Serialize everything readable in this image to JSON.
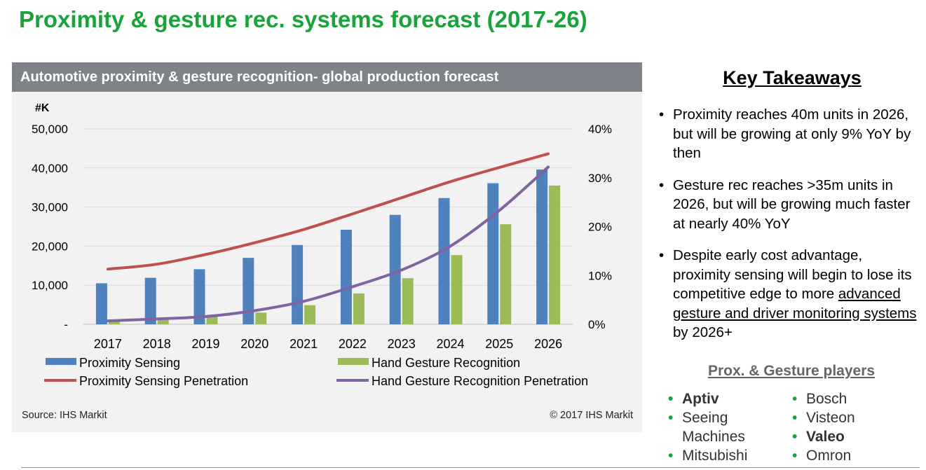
{
  "title": "Proximity & gesture rec. systems forecast (2017-26)",
  "colors": {
    "title_green": "#1aa33a",
    "proximity_bar": "#4f81bd",
    "gesture_bar": "#9bbb59",
    "proximity_line": "#c0504d",
    "gesture_line": "#8064a2",
    "header_bg": "#7f8389",
    "panel_bg": "#f2f2f2"
  },
  "chart": {
    "header": "Automotive proximity & gesture recognition- global production forecast",
    "source": "Source: IHS Markit",
    "copyright": "© 2017 IHS Markit"
  },
  "chart_data": {
    "type": "bar",
    "title": "Automotive proximity & gesture recognition- global production forecast",
    "categories": [
      "2017",
      "2018",
      "2019",
      "2020",
      "2021",
      "2022",
      "2023",
      "2024",
      "2025",
      "2026"
    ],
    "ylabel": "#K",
    "ylim": [
      0,
      50000
    ],
    "yticks": [
      "-",
      "10,000",
      "20,000",
      "30,000",
      "40,000",
      "50,000"
    ],
    "y2lim": [
      0,
      40
    ],
    "y2ticks": [
      "0%",
      "10%",
      "20%",
      "30%",
      "40%"
    ],
    "grid": true,
    "legend_position": "bottom",
    "series": [
      {
        "name": "Proximity Sensing",
        "kind": "bar",
        "axis": "left",
        "values": [
          10500,
          11900,
          14100,
          17000,
          20300,
          24200,
          28000,
          32300,
          36100,
          39600
        ]
      },
      {
        "name": "Hand Gesture Recognition",
        "kind": "bar",
        "axis": "left",
        "values": [
          900,
          1400,
          2000,
          3000,
          4900,
          7900,
          11800,
          17700,
          25600,
          35500
        ]
      },
      {
        "name": "Proximity Sensing Penetration",
        "kind": "line",
        "axis": "right",
        "unit": "%",
        "values": [
          11.3,
          12.3,
          14.3,
          16.7,
          19.4,
          22.6,
          25.9,
          29.2,
          32.1,
          34.9
        ]
      },
      {
        "name": "Hand Gesture Recognition Penetration",
        "kind": "line",
        "axis": "right",
        "unit": "%",
        "values": [
          0.7,
          1.1,
          1.6,
          2.8,
          4.7,
          7.7,
          11.1,
          16.0,
          23.3,
          32.2
        ]
      }
    ]
  },
  "takeaways": {
    "title": "Key Takeaways",
    "items": [
      {
        "text": "Proximity reaches 40m units in 2026, but will be growing at only 9% YoY by then"
      },
      {
        "text": "Gesture rec reaches >35m units in 2026, but will be growing much faster at nearly 40% YoY"
      },
      {
        "pre": "Despite early cost advantage, proximity sensing will begin to lose its competitive edge to more ",
        "underlined": "advanced gesture and driver monitoring systems ",
        "post": "by 2026+"
      }
    ]
  },
  "players": {
    "title": "Prox. & Gesture players",
    "col1": [
      {
        "name": "Aptiv",
        "bold": true
      },
      {
        "name": "Seeing Machines",
        "bold": false
      },
      {
        "name": "Mitsubishi",
        "bold": false
      }
    ],
    "col2": [
      {
        "name": "Bosch",
        "bold": false
      },
      {
        "name": "Visteon",
        "bold": false
      },
      {
        "name": "Valeo",
        "bold": true
      },
      {
        "name": "Omron",
        "bold": false
      }
    ]
  }
}
